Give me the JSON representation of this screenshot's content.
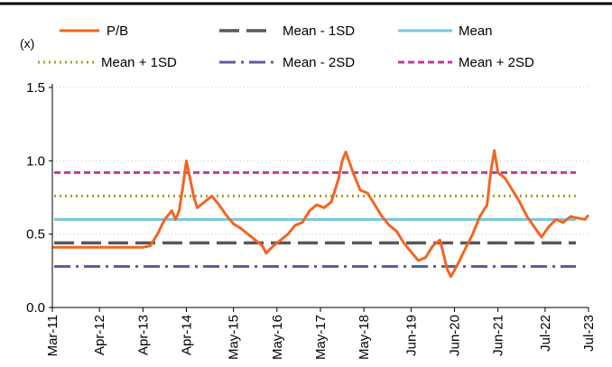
{
  "chart_data": {
    "type": "line",
    "title": "",
    "y_unit": "(x)",
    "ylim": [
      0.0,
      1.5
    ],
    "yticks": [
      0.0,
      0.5,
      1.0,
      1.5
    ],
    "ytick_labels": [
      "0.0",
      "0.5",
      "1.0",
      "1.5"
    ],
    "xlim": [
      "2011-03",
      "2023-07"
    ],
    "xtick_labels": [
      "Mar-11",
      "Apr-12",
      "Apr-13",
      "Apr-14",
      "May-15",
      "May-16",
      "May-17",
      "May-18",
      "Jun-19",
      "Jun-20",
      "Jun-21",
      "Jul-22",
      "Jul-23"
    ],
    "xtick_values": [
      "2011-03",
      "2012-04",
      "2013-04",
      "2014-04",
      "2015-05",
      "2016-05",
      "2017-05",
      "2018-05",
      "2019-06",
      "2020-06",
      "2021-06",
      "2022-07",
      "2023-07"
    ],
    "grid": "horizontal-dotted",
    "legend_position": "top",
    "series": [
      {
        "name": "P/B",
        "style": "solid",
        "color": "#f26522",
        "points": [
          [
            "2011-03",
            0.41
          ],
          [
            "2011-09",
            0.41
          ],
          [
            "2012-04",
            0.41
          ],
          [
            "2012-10",
            0.41
          ],
          [
            "2013-04",
            0.41
          ],
          [
            "2013-06",
            0.42
          ],
          [
            "2013-08",
            0.5
          ],
          [
            "2013-10",
            0.6
          ],
          [
            "2013-12",
            0.66
          ],
          [
            "2014-01",
            0.6
          ],
          [
            "2014-02",
            0.66
          ],
          [
            "2014-03",
            0.82
          ],
          [
            "2014-04",
            1.0
          ],
          [
            "2014-05",
            0.88
          ],
          [
            "2014-06",
            0.76
          ],
          [
            "2014-07",
            0.68
          ],
          [
            "2014-09",
            0.72
          ],
          [
            "2014-11",
            0.76
          ],
          [
            "2015-01",
            0.7
          ],
          [
            "2015-03",
            0.63
          ],
          [
            "2015-05",
            0.57
          ],
          [
            "2015-07",
            0.54
          ],
          [
            "2015-09",
            0.5
          ],
          [
            "2015-11",
            0.46
          ],
          [
            "2016-01",
            0.42
          ],
          [
            "2016-02",
            0.37
          ],
          [
            "2016-04",
            0.42
          ],
          [
            "2016-06",
            0.46
          ],
          [
            "2016-08",
            0.5
          ],
          [
            "2016-10",
            0.56
          ],
          [
            "2016-12",
            0.58
          ],
          [
            "2017-02",
            0.66
          ],
          [
            "2017-04",
            0.7
          ],
          [
            "2017-06",
            0.68
          ],
          [
            "2017-08",
            0.72
          ],
          [
            "2017-10",
            0.88
          ],
          [
            "2017-11",
            1.0
          ],
          [
            "2017-12",
            1.06
          ],
          [
            "2018-02",
            0.92
          ],
          [
            "2018-04",
            0.8
          ],
          [
            "2018-06",
            0.78
          ],
          [
            "2018-08",
            0.7
          ],
          [
            "2018-10",
            0.62
          ],
          [
            "2018-12",
            0.56
          ],
          [
            "2019-02",
            0.52
          ],
          [
            "2019-04",
            0.44
          ],
          [
            "2019-06",
            0.38
          ],
          [
            "2019-08",
            0.32
          ],
          [
            "2019-10",
            0.34
          ],
          [
            "2019-12",
            0.42
          ],
          [
            "2020-02",
            0.46
          ],
          [
            "2020-04",
            0.26
          ],
          [
            "2020-05",
            0.21
          ],
          [
            "2020-07",
            0.3
          ],
          [
            "2020-09",
            0.4
          ],
          [
            "2020-11",
            0.5
          ],
          [
            "2021-01",
            0.62
          ],
          [
            "2021-03",
            0.7
          ],
          [
            "2021-04",
            0.92
          ],
          [
            "2021-05",
            1.07
          ],
          [
            "2021-06",
            0.92
          ],
          [
            "2021-08",
            0.88
          ],
          [
            "2021-10",
            0.8
          ],
          [
            "2021-12",
            0.72
          ],
          [
            "2022-02",
            0.62
          ],
          [
            "2022-04",
            0.55
          ],
          [
            "2022-06",
            0.48
          ],
          [
            "2022-08",
            0.55
          ],
          [
            "2022-10",
            0.6
          ],
          [
            "2022-12",
            0.58
          ],
          [
            "2023-02",
            0.62
          ],
          [
            "2023-04",
            0.61
          ],
          [
            "2023-06",
            0.6
          ],
          [
            "2023-07",
            0.63
          ]
        ]
      },
      {
        "name": "Mean - 1SD",
        "style": "dash",
        "color": "#595959",
        "constant": 0.44
      },
      {
        "name": "Mean",
        "style": "solid",
        "color": "#74c7e0",
        "constant": 0.6
      },
      {
        "name": "Mean + 1SD",
        "style": "dot",
        "color": "#a3a32a",
        "constant": 0.76
      },
      {
        "name": "Mean - 2SD",
        "style": "dashdot",
        "color": "#5b5f9e",
        "constant": 0.28
      },
      {
        "name": "Mean + 2SD",
        "style": "shortdash",
        "color": "#c0399e",
        "constant": 0.92
      }
    ]
  }
}
